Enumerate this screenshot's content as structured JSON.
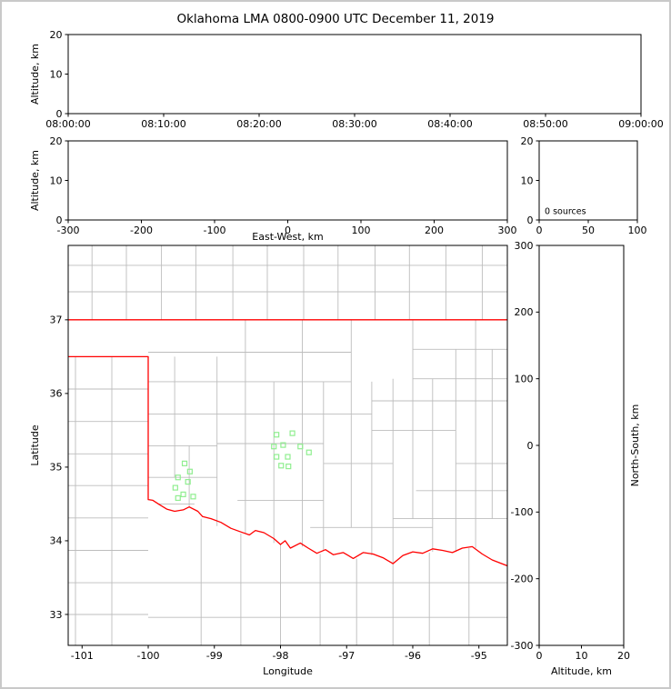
{
  "figure": {
    "title": "Oklahoma LMA 0800-0900 UTC December 11, 2019",
    "background": "#ffffff",
    "frame_color": "#c9c9c9"
  },
  "colors": {
    "axis": "#000000",
    "county_line": "#bdbdbd",
    "state_boundary": "#ff0000",
    "station_marker": "#90ee90"
  },
  "chart_data": [
    {
      "id": "time_height_panel",
      "type": "scatter",
      "ylabel": "Altitude, km",
      "x_tick_labels": [
        "08:00:00",
        "08:10:00",
        "08:20:00",
        "08:30:00",
        "08:40:00",
        "08:50:00",
        "09:00:00"
      ],
      "y_ticks": [
        0,
        10,
        20
      ],
      "ylim": [
        0,
        20
      ],
      "points": []
    },
    {
      "id": "ew_altitude_panel",
      "type": "scatter",
      "xlabel": "East-West, km",
      "ylabel": "Altitude, km",
      "x_ticks": [
        -300,
        -200,
        -100,
        0,
        100,
        200,
        300
      ],
      "xlim": [
        -300,
        300
      ],
      "y_ticks": [
        0,
        10,
        20
      ],
      "ylim": [
        0,
        20
      ],
      "points": []
    },
    {
      "id": "altitude_histogram_panel",
      "type": "line",
      "x_ticks": [
        0,
        50,
        100
      ],
      "xlim": [
        0,
        100
      ],
      "y_ticks": [
        0,
        10,
        20
      ],
      "ylim": [
        0,
        20
      ],
      "annotation": "0 sources",
      "points": []
    },
    {
      "id": "plan_view_panel",
      "type": "scatter",
      "xlabel": "Longitude",
      "ylabel": "Latitude",
      "x_ticks": [
        -101,
        -100,
        -99,
        -98,
        -97,
        -96,
        -95
      ],
      "xlim": [
        -101.21,
        -94.57
      ],
      "y_ticks": [
        33,
        34,
        35,
        36,
        37
      ],
      "ylim": [
        32.58,
        38.01
      ],
      "stations": [
        [
          -98.06,
          35.44
        ],
        [
          -97.82,
          35.46
        ],
        [
          -98.1,
          35.28
        ],
        [
          -97.96,
          35.3
        ],
        [
          -97.7,
          35.28
        ],
        [
          -98.06,
          35.14
        ],
        [
          -97.89,
          35.14
        ],
        [
          -97.57,
          35.2
        ],
        [
          -97.99,
          35.02
        ],
        [
          -97.88,
          35.01
        ],
        [
          -99.45,
          35.05
        ],
        [
          -99.37,
          34.94
        ],
        [
          -99.55,
          34.86
        ],
        [
          -99.4,
          34.8
        ],
        [
          -99.59,
          34.72
        ],
        [
          -99.47,
          34.63
        ],
        [
          -99.32,
          34.6
        ],
        [
          -99.55,
          34.58
        ]
      ],
      "state_boundary": [
        [
          [
            -101.21,
            37.0
          ],
          [
            -94.57,
            37.0
          ]
        ],
        [
          [
            -101.21,
            36.5
          ],
          [
            -100.0,
            36.5
          ],
          [
            -100.0,
            34.56
          ],
          [
            -99.93,
            34.55
          ],
          [
            -99.83,
            34.49
          ],
          [
            -99.72,
            34.43
          ],
          [
            -99.6,
            34.4
          ],
          [
            -99.47,
            34.42
          ],
          [
            -99.38,
            34.46
          ],
          [
            -99.25,
            34.4
          ],
          [
            -99.18,
            34.33
          ],
          [
            -99.05,
            34.3
          ],
          [
            -98.9,
            34.25
          ],
          [
            -98.75,
            34.17
          ],
          [
            -98.6,
            34.12
          ],
          [
            -98.47,
            34.08
          ],
          [
            -98.38,
            34.14
          ],
          [
            -98.25,
            34.11
          ],
          [
            -98.1,
            34.03
          ],
          [
            -98.0,
            33.95
          ],
          [
            -97.93,
            34.0
          ],
          [
            -97.85,
            33.9
          ],
          [
            -97.7,
            33.97
          ],
          [
            -97.58,
            33.9
          ],
          [
            -97.45,
            33.83
          ],
          [
            -97.32,
            33.88
          ],
          [
            -97.2,
            33.81
          ],
          [
            -97.05,
            33.84
          ],
          [
            -96.9,
            33.76
          ],
          [
            -96.75,
            33.84
          ],
          [
            -96.6,
            33.82
          ],
          [
            -96.45,
            33.77
          ],
          [
            -96.3,
            33.69
          ],
          [
            -96.15,
            33.8
          ],
          [
            -96.0,
            33.85
          ],
          [
            -95.85,
            33.83
          ],
          [
            -95.7,
            33.89
          ],
          [
            -95.55,
            33.87
          ],
          [
            -95.4,
            33.84
          ],
          [
            -95.25,
            33.9
          ],
          [
            -95.1,
            33.92
          ],
          [
            -94.95,
            33.82
          ],
          [
            -94.8,
            33.74
          ],
          [
            -94.57,
            33.66
          ]
        ]
      ],
      "county_lines": [
        [
          [
            -101.21,
            37.38
          ],
          [
            -94.57,
            37.38
          ]
        ],
        [
          [
            -101.21,
            37.74
          ],
          [
            -94.57,
            37.74
          ]
        ],
        [
          [
            -100.85,
            37.0
          ],
          [
            -100.85,
            38.01
          ]
        ],
        [
          [
            -100.33,
            37.0
          ],
          [
            -100.33,
            38.01
          ]
        ],
        [
          [
            -99.8,
            37.0
          ],
          [
            -99.8,
            38.01
          ]
        ],
        [
          [
            -99.28,
            37.0
          ],
          [
            -99.28,
            38.01
          ]
        ],
        [
          [
            -98.72,
            37.0
          ],
          [
            -98.72,
            38.01
          ]
        ],
        [
          [
            -98.2,
            37.0
          ],
          [
            -98.2,
            38.01
          ]
        ],
        [
          [
            -97.65,
            37.0
          ],
          [
            -97.65,
            38.01
          ]
        ],
        [
          [
            -97.13,
            37.0
          ],
          [
            -97.13,
            38.01
          ]
        ],
        [
          [
            -96.57,
            37.0
          ],
          [
            -96.57,
            38.01
          ]
        ],
        [
          [
            -96.05,
            37.0
          ],
          [
            -96.05,
            38.01
          ]
        ],
        [
          [
            -95.5,
            37.0
          ],
          [
            -95.5,
            38.01
          ]
        ],
        [
          [
            -94.95,
            37.0
          ],
          [
            -94.95,
            38.01
          ]
        ],
        [
          [
            -101.21,
            36.06
          ],
          [
            -100.0,
            36.06
          ]
        ],
        [
          [
            -101.21,
            35.62
          ],
          [
            -100.0,
            35.62
          ]
        ],
        [
          [
            -101.21,
            35.18
          ],
          [
            -100.0,
            35.18
          ]
        ],
        [
          [
            -101.21,
            34.75
          ],
          [
            -100.0,
            34.75
          ]
        ],
        [
          [
            -101.21,
            34.31
          ],
          [
            -100.0,
            34.31
          ]
        ],
        [
          [
            -101.21,
            33.87
          ],
          [
            -100.0,
            33.87
          ]
        ],
        [
          [
            -101.21,
            33.43
          ],
          [
            -100.0,
            33.43
          ]
        ],
        [
          [
            -101.21,
            33.0
          ],
          [
            -100.0,
            33.0
          ]
        ],
        [
          [
            -100.55,
            36.5
          ],
          [
            -100.55,
            32.58
          ]
        ],
        [
          [
            -101.1,
            36.5
          ],
          [
            -101.1,
            32.58
          ]
        ],
        [
          [
            -100.0,
            33.43
          ],
          [
            -94.57,
            33.43
          ]
        ],
        [
          [
            -100.0,
            32.96
          ],
          [
            -94.57,
            32.96
          ]
        ],
        [
          [
            -99.2,
            34.3
          ],
          [
            -99.2,
            32.58
          ]
        ],
        [
          [
            -98.6,
            34.1
          ],
          [
            -98.6,
            32.58
          ]
        ],
        [
          [
            -98.0,
            33.95
          ],
          [
            -98.0,
            32.58
          ]
        ],
        [
          [
            -97.4,
            33.82
          ],
          [
            -97.4,
            32.58
          ]
        ],
        [
          [
            -96.85,
            33.76
          ],
          [
            -96.85,
            32.58
          ]
        ],
        [
          [
            -96.3,
            33.69
          ],
          [
            -96.3,
            32.58
          ]
        ],
        [
          [
            -95.75,
            33.84
          ],
          [
            -95.75,
            32.58
          ]
        ],
        [
          [
            -95.15,
            33.9
          ],
          [
            -95.15,
            32.58
          ]
        ],
        [
          [
            -100.0,
            36.56
          ],
          [
            -96.93,
            36.56
          ]
        ],
        [
          [
            -96.0,
            36.6
          ],
          [
            -94.57,
            36.6
          ]
        ],
        [
          [
            -100.0,
            36.16
          ],
          [
            -96.93,
            36.16
          ]
        ],
        [
          [
            -96.0,
            36.2
          ],
          [
            -94.57,
            36.2
          ]
        ],
        [
          [
            -100.0,
            35.72
          ],
          [
            -96.62,
            35.72
          ]
        ],
        [
          [
            -96.62,
            35.9
          ],
          [
            -94.57,
            35.9
          ]
        ],
        [
          [
            -96.62,
            35.5
          ],
          [
            -95.35,
            35.5
          ]
        ],
        [
          [
            -100.0,
            35.29
          ],
          [
            -98.96,
            35.29
          ]
        ],
        [
          [
            -98.96,
            35.32
          ],
          [
            -97.35,
            35.32
          ]
        ],
        [
          [
            -97.35,
            35.05
          ],
          [
            -96.3,
            35.05
          ]
        ],
        [
          [
            -100.0,
            34.86
          ],
          [
            -98.96,
            34.86
          ]
        ],
        [
          [
            -98.65,
            34.55
          ],
          [
            -97.35,
            34.55
          ]
        ],
        [
          [
            -99.85,
            34.5
          ],
          [
            -99.3,
            34.5
          ]
        ],
        [
          [
            -97.55,
            34.18
          ],
          [
            -95.7,
            34.18
          ]
        ],
        [
          [
            -96.3,
            34.3
          ],
          [
            -94.57,
            34.3
          ]
        ],
        [
          [
            -95.95,
            34.68
          ],
          [
            -94.57,
            34.68
          ]
        ],
        [
          [
            -95.35,
            35.05
          ],
          [
            -94.57,
            35.05
          ]
        ],
        [
          [
            -99.6,
            36.5
          ],
          [
            -99.6,
            34.86
          ]
        ],
        [
          [
            -99.38,
            35.29
          ],
          [
            -99.38,
            34.45
          ]
        ],
        [
          [
            -98.96,
            36.5
          ],
          [
            -98.96,
            34.2
          ]
        ],
        [
          [
            -98.53,
            37.0
          ],
          [
            -98.53,
            34.1
          ]
        ],
        [
          [
            -98.1,
            36.16
          ],
          [
            -98.1,
            33.97
          ]
        ],
        [
          [
            -97.67,
            37.0
          ],
          [
            -97.67,
            33.92
          ]
        ],
        [
          [
            -97.35,
            36.16
          ],
          [
            -97.35,
            33.86
          ]
        ],
        [
          [
            -96.93,
            37.0
          ],
          [
            -96.93,
            34.18
          ]
        ],
        [
          [
            -96.62,
            36.16
          ],
          [
            -96.62,
            33.8
          ]
        ],
        [
          [
            -96.3,
            36.2
          ],
          [
            -96.3,
            33.7
          ]
        ],
        [
          [
            -96.0,
            37.0
          ],
          [
            -96.0,
            34.3
          ]
        ],
        [
          [
            -95.7,
            36.2
          ],
          [
            -95.7,
            33.85
          ]
        ],
        [
          [
            -95.35,
            36.6
          ],
          [
            -95.35,
            33.85
          ]
        ],
        [
          [
            -95.05,
            37.0
          ],
          [
            -95.05,
            33.9
          ]
        ],
        [
          [
            -94.8,
            36.6
          ],
          [
            -94.8,
            34.3
          ]
        ]
      ]
    },
    {
      "id": "ns_altitude_panel",
      "type": "scatter",
      "xlabel": "Altitude, km",
      "ylabel": "North-South, km",
      "x_ticks": [
        0,
        10,
        20
      ],
      "xlim": [
        0,
        20
      ],
      "y_ticks": [
        -300,
        -200,
        -100,
        0,
        100,
        200,
        300
      ],
      "ylim": [
        -300,
        300
      ],
      "points": []
    }
  ]
}
